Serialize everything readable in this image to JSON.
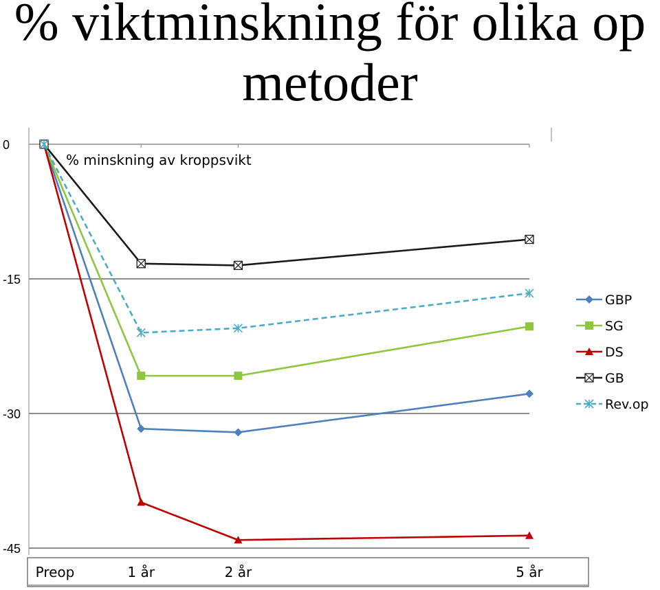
{
  "page": {
    "title_line1": "% viktminskning för olika op",
    "title_line2": "metoder"
  },
  "chart_data": {
    "type": "line",
    "title": "",
    "annotation": "% minskning av kroppsvikt",
    "xlabel": "",
    "ylabel": "",
    "categories": [
      "Preop",
      "1 år",
      "2 år",
      "5 år"
    ],
    "x_positions": [
      0,
      1,
      2,
      5
    ],
    "ylim": [
      -45,
      0
    ],
    "yticks": [
      0,
      -15,
      -30,
      -45
    ],
    "grid": true,
    "legend_position": "right",
    "series": [
      {
        "name": "GBP",
        "values": [
          0,
          -31.7,
          -32.1,
          -27.8
        ],
        "color": "#4f7fbc",
        "marker": "diamond",
        "dash": "solid"
      },
      {
        "name": "SG",
        "values": [
          0,
          -25.8,
          -25.8,
          -20.3
        ],
        "color": "#8dc63f",
        "marker": "square",
        "dash": "solid"
      },
      {
        "name": "DS",
        "values": [
          0,
          -39.9,
          -44.1,
          -43.6
        ],
        "color": "#c00000",
        "marker": "triangle",
        "dash": "solid"
      },
      {
        "name": "GB",
        "values": [
          0,
          -13.3,
          -13.5,
          -10.6
        ],
        "color": "#1a1a1a",
        "marker": "boxx",
        "dash": "solid"
      },
      {
        "name": "Rev.op",
        "values": [
          0,
          -21.0,
          -20.5,
          -16.6
        ],
        "color": "#4bacc6",
        "marker": "asterisk",
        "dash": "dashed"
      }
    ]
  }
}
